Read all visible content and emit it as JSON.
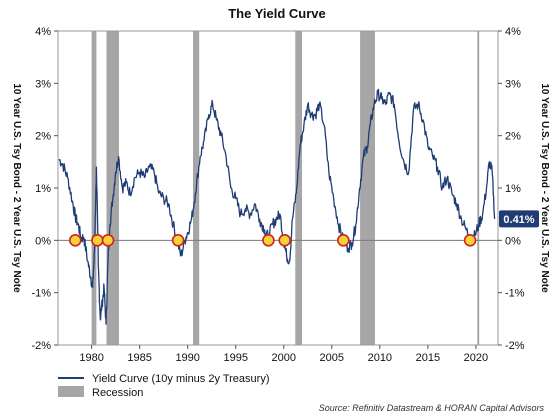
{
  "chart_data": {
    "type": "line",
    "title": "The Yield Curve",
    "ylabel_left": "10 Year U.S. Tsy Bond - 2 Year U.S. Tsy Note",
    "ylabel_right": "10 Year U.S. Tsy Bond - 2 Year U.S. Tsy Note",
    "xlim": [
      1976.5,
      2022.3
    ],
    "ylim": [
      -2,
      4
    ],
    "x_ticks": [
      1980,
      1985,
      1990,
      1995,
      2000,
      2005,
      2010,
      2015,
      2020
    ],
    "y_ticks": [
      -2,
      -1,
      0,
      1,
      2,
      3,
      4
    ],
    "y_tick_labels": [
      "-2%",
      "-1%",
      "0%",
      "1%",
      "2%",
      "3%",
      "4%"
    ],
    "grid": false,
    "zero_line": true,
    "series": [
      {
        "name": "Yield Curve (10y minus 2y Treasury)",
        "color": "#1f3c74",
        "x": [
          1976.6,
          1977.0,
          1977.5,
          1978.0,
          1978.3,
          1978.6,
          1978.9,
          1979.2,
          1979.6,
          1979.9,
          1980.1,
          1980.3,
          1980.5,
          1980.7,
          1980.9,
          1981.1,
          1981.3,
          1981.5,
          1981.7,
          1981.9,
          1982.2,
          1982.5,
          1982.8,
          1983.2,
          1983.6,
          1984.0,
          1984.5,
          1985.0,
          1985.5,
          1986.0,
          1986.5,
          1987.0,
          1987.5,
          1988.0,
          1988.5,
          1988.9,
          1989.3,
          1989.7,
          1990.0,
          1990.4,
          1990.8,
          1991.3,
          1991.7,
          1992.2,
          1992.6,
          1993.0,
          1993.5,
          1994.0,
          1994.5,
          1995.0,
          1995.5,
          1996.0,
          1996.5,
          1997.0,
          1997.5,
          1998.0,
          1998.4,
          1998.8,
          1999.2,
          1999.6,
          2000.0,
          2000.3,
          2000.6,
          2000.9,
          2001.3,
          2001.7,
          2002.1,
          2002.5,
          2002.9,
          2003.3,
          2003.7,
          2004.2,
          2004.7,
          2005.2,
          2005.7,
          2006.2,
          2006.7,
          2007.1,
          2007.5,
          2007.9,
          2008.3,
          2008.7,
          2009.0,
          2009.4,
          2009.8,
          2010.2,
          2010.6,
          2011.0,
          2011.5,
          2012.0,
          2012.5,
          2013.0,
          2013.5,
          2014.0,
          2014.5,
          2015.0,
          2015.5,
          2016.0,
          2016.5,
          2017.0,
          2017.5,
          2018.0,
          2018.5,
          2019.0,
          2019.5,
          2019.9,
          2020.3,
          2020.7,
          2021.1,
          2021.4,
          2021.7,
          2021.95
        ],
        "y": [
          1.55,
          1.45,
          1.2,
          0.75,
          0.45,
          0.3,
          0.05,
          0.05,
          -0.4,
          -0.7,
          -0.9,
          -0.2,
          1.4,
          -0.5,
          -1.5,
          -1.2,
          -0.9,
          -1.6,
          -0.4,
          0.3,
          0.8,
          1.3,
          1.6,
          1.0,
          1.1,
          0.9,
          1.2,
          1.3,
          1.2,
          1.4,
          1.3,
          0.9,
          0.8,
          0.7,
          0.3,
          0.0,
          -0.3,
          0.0,
          0.15,
          0.4,
          0.9,
          1.6,
          1.9,
          2.4,
          2.6,
          2.3,
          2.0,
          1.6,
          1.0,
          0.8,
          0.5,
          0.6,
          0.5,
          0.7,
          0.4,
          0.2,
          0.05,
          0.3,
          0.4,
          0.5,
          0.0,
          -0.3,
          -0.4,
          0.4,
          0.9,
          1.8,
          2.2,
          2.6,
          2.4,
          2.4,
          2.6,
          2.2,
          1.3,
          0.8,
          0.3,
          0.0,
          -0.15,
          -0.05,
          0.3,
          1.0,
          1.6,
          1.8,
          2.2,
          2.6,
          2.8,
          2.7,
          2.6,
          2.8,
          2.6,
          1.9,
          1.5,
          1.3,
          2.5,
          2.6,
          2.3,
          1.8,
          1.6,
          1.4,
          1.0,
          1.2,
          0.9,
          0.7,
          0.4,
          0.2,
          0.0,
          0.1,
          0.3,
          0.5,
          1.0,
          1.5,
          1.3,
          0.41
        ]
      },
      {
        "name": "Recession",
        "color": "#a6a6a6",
        "recessions": [
          [
            1980.0,
            1980.5
          ],
          [
            1981.55,
            1982.85
          ],
          [
            1990.55,
            1991.2
          ],
          [
            2001.2,
            2001.9
          ],
          [
            2007.95,
            2009.5
          ],
          [
            2020.15,
            2020.35
          ]
        ]
      }
    ],
    "markers": [
      1978.3,
      1980.6,
      1981.7,
      1989.0,
      1998.4,
      2000.1,
      2006.2,
      2019.4
    ],
    "last_value": 0.41,
    "last_value_label": "0.41%",
    "legend": {
      "position": "bottom-left",
      "entries": [
        "Yield Curve (10y minus 2y Treasury)",
        "Recession"
      ]
    },
    "source": "Source: Refinitiv Datastream & HORAN Capital Advisors",
    "colors": {
      "line": "#1f3c74",
      "recession": "#a6a6a6",
      "marker_ring": "#d42020",
      "marker_fill": "#f2d33a",
      "badge": "#1f3c74",
      "zero_line": "#7a7a7a"
    }
  }
}
